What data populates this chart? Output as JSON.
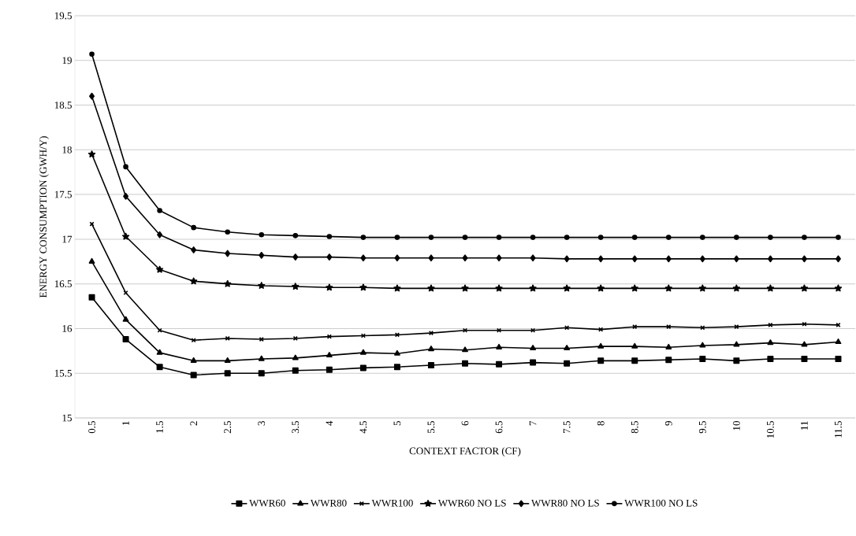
{
  "chart_data": {
    "type": "line",
    "xlabel": "CONTEXT FACTOR (CF)",
    "ylabel": "ENERGY CONSUMPTION (GWH/Y)",
    "categories": [
      "0.5",
      "1",
      "1.5",
      "2",
      "2.5",
      "3",
      "3.5",
      "4",
      "4.5",
      "5",
      "5.5",
      "6",
      "6.5",
      "7",
      "7.5",
      "8",
      "8.5",
      "9",
      "9.5",
      "10",
      "10.5",
      "11",
      "11.5"
    ],
    "ylim": [
      15,
      19.5
    ],
    "yticks": [
      15,
      15.5,
      16,
      16.5,
      17,
      17.5,
      18,
      18.5,
      19,
      19.5
    ],
    "grid": "y",
    "legend": "bottom",
    "line_style": "solid",
    "series": [
      {
        "name": "WWR60",
        "color": "#000000",
        "marker": "square",
        "values": [
          16.35,
          15.88,
          15.57,
          15.48,
          15.5,
          15.5,
          15.53,
          15.54,
          15.56,
          15.57,
          15.59,
          15.61,
          15.6,
          15.62,
          15.61,
          15.64,
          15.64,
          15.65,
          15.66,
          15.64,
          15.66,
          15.66,
          15.66
        ]
      },
      {
        "name": "WWR80",
        "color": "#000000",
        "marker": "triangle",
        "values": [
          16.75,
          16.1,
          15.73,
          15.64,
          15.64,
          15.66,
          15.67,
          15.7,
          15.73,
          15.72,
          15.77,
          15.76,
          15.79,
          15.78,
          15.78,
          15.8,
          15.8,
          15.79,
          15.81,
          15.82,
          15.84,
          15.82,
          15.85
        ]
      },
      {
        "name": "WWR100",
        "color": "#000000",
        "marker": "cross",
        "values": [
          17.17,
          16.4,
          15.98,
          15.87,
          15.89,
          15.88,
          15.89,
          15.91,
          15.92,
          15.93,
          15.95,
          15.98,
          15.98,
          15.98,
          16.01,
          15.99,
          16.02,
          16.02,
          16.01,
          16.02,
          16.04,
          16.05,
          16.04
        ]
      },
      {
        "name": "WWR60 NO LS",
        "color": "#000000",
        "marker": "star",
        "values": [
          17.95,
          17.03,
          16.66,
          16.53,
          16.5,
          16.48,
          16.47,
          16.46,
          16.46,
          16.45,
          16.45,
          16.45,
          16.45,
          16.45,
          16.45,
          16.45,
          16.45,
          16.45,
          16.45,
          16.45,
          16.45,
          16.45,
          16.45
        ]
      },
      {
        "name": "WWR80 NO LS",
        "color": "#000000",
        "marker": "diamond",
        "values": [
          18.6,
          17.48,
          17.05,
          16.88,
          16.84,
          16.82,
          16.8,
          16.8,
          16.79,
          16.79,
          16.79,
          16.79,
          16.79,
          16.79,
          16.78,
          16.78,
          16.78,
          16.78,
          16.78,
          16.78,
          16.78,
          16.78,
          16.78
        ]
      },
      {
        "name": "WWR100 NO LS",
        "color": "#000000",
        "marker": "circle",
        "values": [
          19.07,
          17.81,
          17.32,
          17.13,
          17.08,
          17.05,
          17.04,
          17.03,
          17.02,
          17.02,
          17.02,
          17.02,
          17.02,
          17.02,
          17.02,
          17.02,
          17.02,
          17.02,
          17.02,
          17.02,
          17.02,
          17.02,
          17.02
        ]
      }
    ]
  }
}
